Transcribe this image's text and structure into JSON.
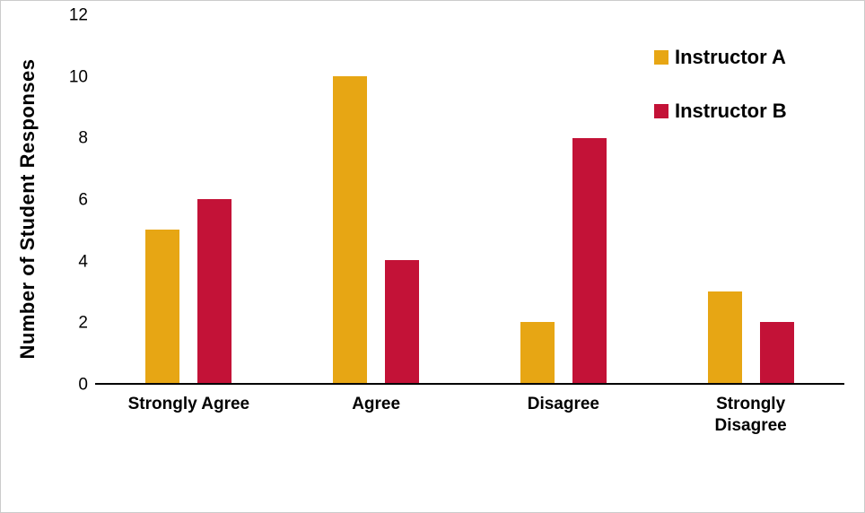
{
  "chart_data": {
    "type": "bar",
    "title": "",
    "categories": [
      "Strongly Agree",
      "Agree",
      "Disagree",
      "Strongly Disagree"
    ],
    "series": [
      {
        "name": "Instructor A",
        "color": "#E7A614",
        "values": [
          5,
          10,
          2,
          3
        ]
      },
      {
        "name": "Instructor B",
        "color": "#C31237",
        "values": [
          6,
          4,
          8,
          2
        ]
      }
    ],
    "xlabel": "",
    "ylabel": "Number of Student Responses",
    "ylim": [
      0,
      12
    ],
    "yticks": [
      0,
      2,
      4,
      6,
      8,
      10,
      12
    ],
    "grid": false,
    "legend_position": "top-right",
    "axis_line_color": "#000000",
    "background_color": "#ffffff"
  }
}
